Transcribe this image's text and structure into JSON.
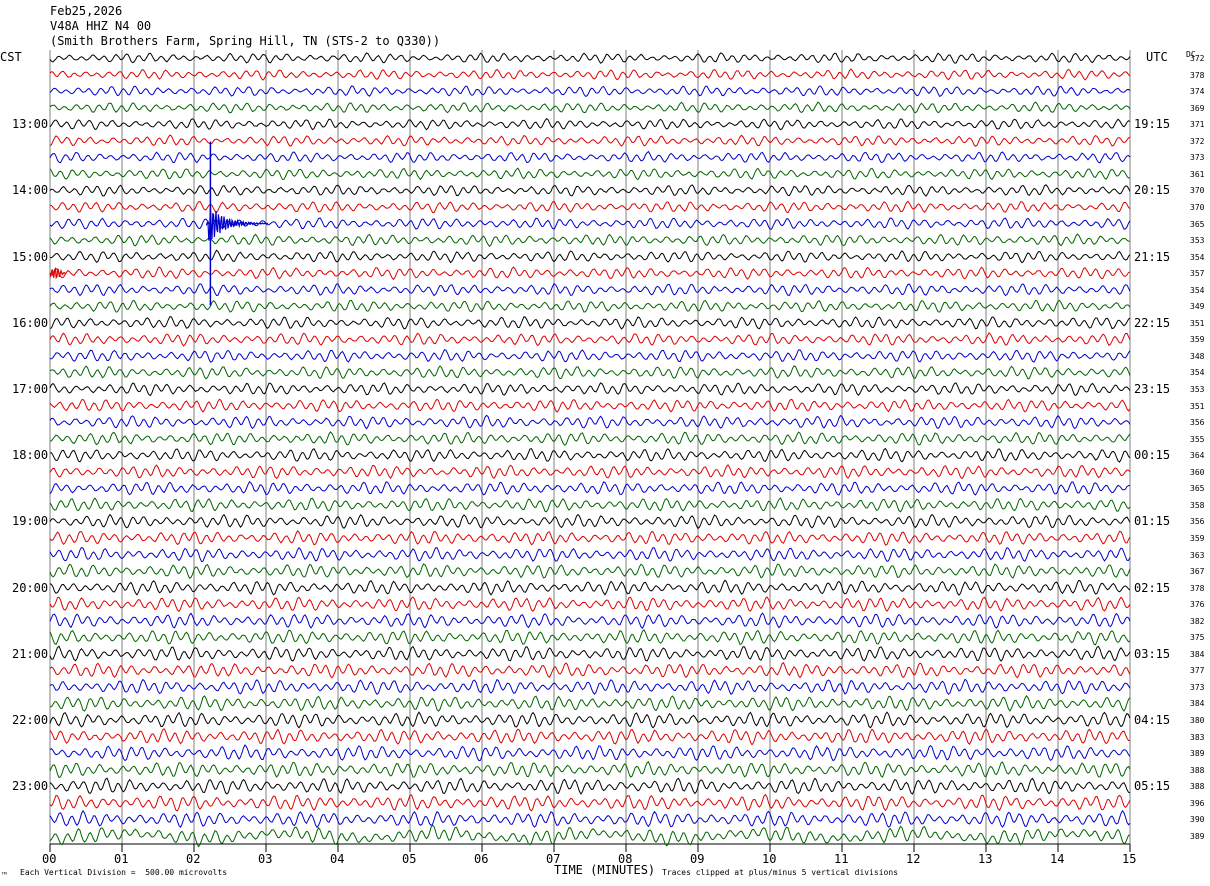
{
  "header": {
    "date": "Feb25,2026",
    "station": "V48A HHZ N4 00",
    "location": "(Smith Brothers Farm, Spring Hill, TN (STS-2 to Q330))"
  },
  "labels": {
    "left_tz": "CST",
    "right_tz": "UTC",
    "dc": "DC",
    "xlabel": "TIME (MINUTES)",
    "scale_note": "Each Vertical Division =  500.00 microvolts",
    "clip_note": "Traces clipped at plus/minus 5 vertical divisions",
    "corner_mark": "™"
  },
  "colors": {
    "trace_cycle": [
      "#000000",
      "#dd0000",
      "#0000cc",
      "#006400"
    ],
    "grid": "#000000"
  },
  "chart_data": {
    "type": "line",
    "description_kind": "helicorder",
    "x_ticks": [
      "00",
      "01",
      "02",
      "03",
      "04",
      "05",
      "06",
      "07",
      "08",
      "09",
      "10",
      "11",
      "12",
      "13",
      "14",
      "15"
    ],
    "xlim": [
      0,
      15
    ],
    "left_hour_labels": [
      "13:00",
      "14:00",
      "15:00",
      "16:00",
      "17:00",
      "18:00",
      "19:00",
      "20:00",
      "21:00",
      "22:00",
      "23:00"
    ],
    "right_hour_labels": [
      "19:15",
      "20:15",
      "21:15",
      "22:15",
      "23:15",
      "00:15",
      "01:15",
      "02:15",
      "03:15",
      "04:15",
      "05:15"
    ],
    "dc_values": [
      "372",
      "378",
      "374",
      "369",
      "371",
      "372",
      "373",
      "361",
      "370",
      "370",
      "365",
      "353",
      "354",
      "357",
      "354",
      "349",
      "351",
      "359",
      "348",
      "354",
      "353",
      "351",
      "356",
      "355",
      "364",
      "360",
      "365",
      "358",
      "356",
      "359",
      "363",
      "367",
      "378",
      "376",
      "382",
      "375",
      "384",
      "377",
      "373",
      "384",
      "380",
      "383",
      "389",
      "388",
      "388",
      "396",
      "390",
      "389"
    ],
    "events": [
      {
        "trace_index": 10,
        "minute": 2.2,
        "note": "large signal (clipped)"
      },
      {
        "trace_index": 13,
        "minute": 0.08,
        "note": "short burst"
      }
    ]
  }
}
